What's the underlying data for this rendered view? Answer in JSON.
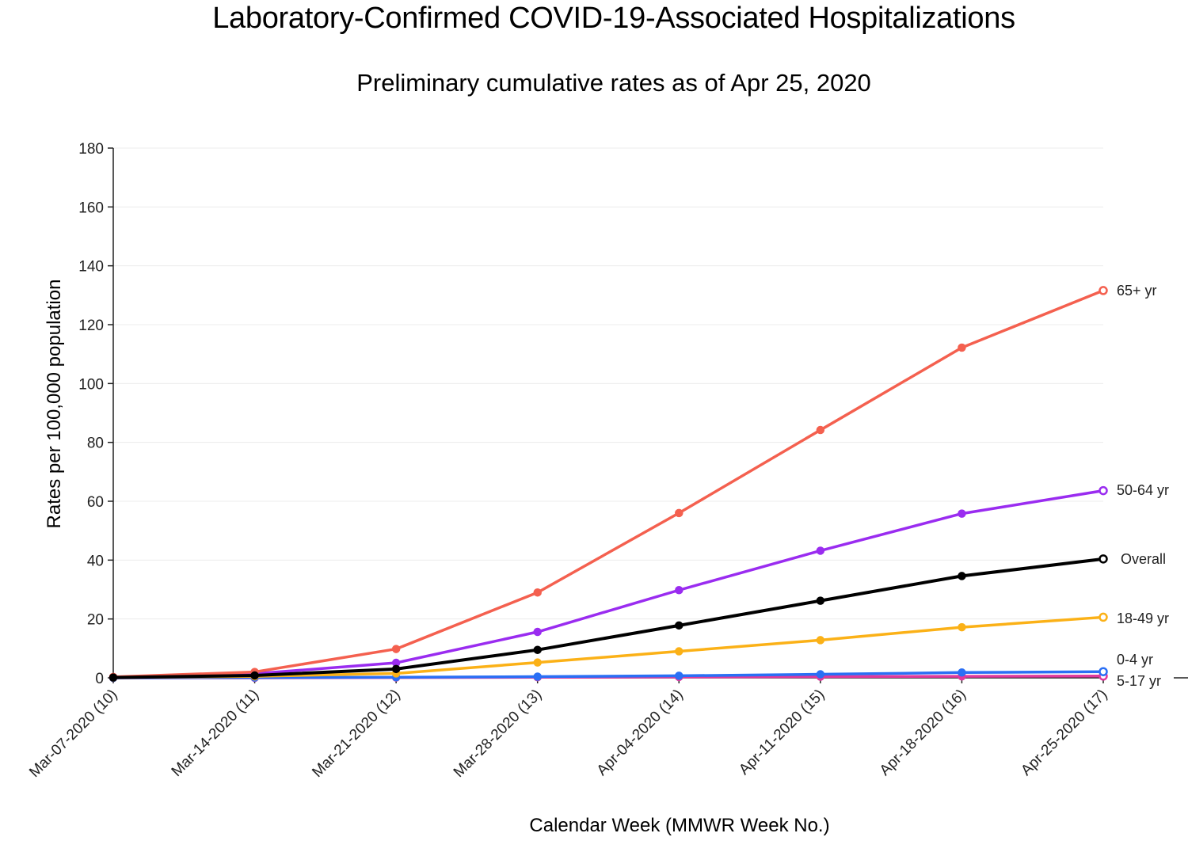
{
  "chart_data": {
    "type": "line",
    "title": "Laboratory-Confirmed COVID-19-Associated Hospitalizations",
    "subtitle": "Preliminary cumulative rates as of Apr 25, 2020",
    "xlabel": "Calendar Week (MMWR Week No.)",
    "ylabel": "Rates per 100,000 population",
    "ylim": [
      0,
      180
    ],
    "yticks": [
      0,
      20,
      40,
      60,
      80,
      100,
      120,
      140,
      160,
      180
    ],
    "categories": [
      "Mar-07-2020 (10)",
      "Mar-14-2020 (11)",
      "Mar-21-2020 (12)",
      "Mar-28-2020 (13)",
      "Apr-04-2020 (14)",
      "Apr-11-2020 (15)",
      "Apr-18-2020 (16)",
      "Apr-25-2020 (17)"
    ],
    "grid": "horizontal",
    "legend": "labels at line ends",
    "series": [
      {
        "name": "65+ yr",
        "color": "#f4604f",
        "values": [
          0.3,
          2.0,
          9.8,
          29.0,
          56.0,
          84.2,
          112.2,
          131.6
        ]
      },
      {
        "name": "50-64 yr",
        "color": "#9a2cf0",
        "values": [
          0.2,
          1.4,
          5.1,
          15.6,
          29.8,
          43.2,
          55.8,
          63.6
        ]
      },
      {
        "name": "Overall",
        "color": "#000000",
        "values": [
          0.1,
          0.8,
          3.0,
          9.5,
          17.8,
          26.2,
          34.6,
          40.4
        ]
      },
      {
        "name": "18-49 yr",
        "color": "#fbb117",
        "values": [
          0.1,
          0.5,
          1.5,
          5.2,
          9.0,
          12.8,
          17.2,
          20.6
        ]
      },
      {
        "name": "0-4 yr",
        "color": "#2a6ff5",
        "values": [
          0.0,
          0.1,
          0.2,
          0.4,
          0.7,
          1.2,
          1.8,
          2.1
        ]
      },
      {
        "name": "5-17 yr",
        "color": "#e0399d",
        "values": [
          0.0,
          0.0,
          0.1,
          0.2,
          0.3,
          0.4,
          0.5,
          0.6
        ]
      }
    ]
  }
}
